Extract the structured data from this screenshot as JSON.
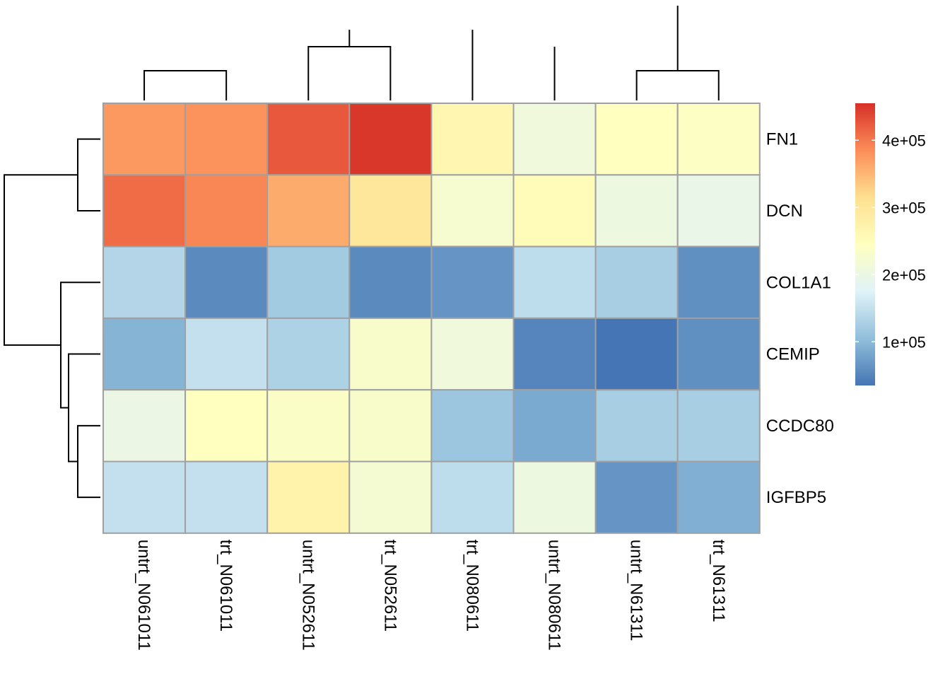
{
  "chart_data": {
    "type": "heatmap",
    "title": "",
    "xlabel": "",
    "ylabel": "",
    "columns": [
      "untrt_N061011",
      "trt_N061011",
      "untrt_N052611",
      "trt_N052611",
      "trt_N080611",
      "untrt_N080611",
      "untrt_N61311",
      "trt_N61311"
    ],
    "rows": [
      "FN1",
      "DCN",
      "COL1A1",
      "CEMIP",
      "CCDC80",
      "IGFBP5"
    ],
    "values": [
      [
        375000,
        380000,
        425000,
        450000,
        265000,
        210000,
        245000,
        240000
      ],
      [
        410000,
        390000,
        360000,
        300000,
        225000,
        255000,
        205000,
        195000
      ],
      [
        135000,
        55000,
        120000,
        55000,
        65000,
        145000,
        125000,
        60000
      ],
      [
        95000,
        150000,
        130000,
        230000,
        210000,
        50000,
        35000,
        60000
      ],
      [
        200000,
        245000,
        235000,
        230000,
        115000,
        85000,
        125000,
        125000
      ],
      [
        150000,
        150000,
        275000,
        220000,
        145000,
        205000,
        65000,
        90000
      ]
    ],
    "color_scale": {
      "colors": [
        "#4575b4",
        "#91bfdb",
        "#e0f3f8",
        "#ffffbf",
        "#fee090",
        "#fc8d59",
        "#d73027"
      ],
      "range": [
        35000,
        455000
      ],
      "ticks": [
        {
          "value": 100000,
          "label": "1e+05"
        },
        {
          "value": 200000,
          "label": "2e+05"
        },
        {
          "value": 300000,
          "label": "3e+05"
        },
        {
          "value": 400000,
          "label": "4e+05"
        }
      ]
    },
    "legend_placement": "right",
    "column_dendrogram": [
      [
        0,
        1,
        0
      ],
      [
        2,
        3,
        1
      ],
      [
        9,
        10,
        2
      ],
      [
        6,
        7,
        0
      ],
      [
        5,
        12,
        1
      ],
      [
        4,
        13,
        2
      ],
      [
        11,
        14,
        3
      ]
    ],
    "row_dendrogram": [
      [
        0,
        1,
        0
      ],
      [
        4,
        5,
        0
      ],
      [
        3,
        7,
        1
      ],
      [
        2,
        8,
        2
      ],
      [
        6,
        9,
        3
      ]
    ]
  }
}
